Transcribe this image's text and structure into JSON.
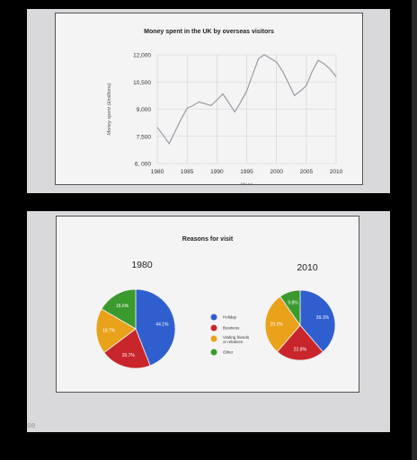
{
  "chart_data": [
    {
      "type": "line",
      "title": "Money spent in the UK by overseas visitors",
      "xlabel": "Year",
      "ylabel": "Money spent (£millions)",
      "x_ticks": [
        "1980",
        "1985",
        "1990",
        "1995",
        "2000",
        "2005",
        "2010"
      ],
      "y_ticks": [
        "12,000",
        "10,500",
        "9,000",
        "7,500",
        "6, 000"
      ],
      "xlim": [
        1980,
        2010
      ],
      "ylim": [
        6000,
        12000
      ],
      "grid": true,
      "series": [
        {
          "x": [
            1980,
            1981,
            1982,
            1983,
            1984,
            1985,
            1986,
            1987,
            1988,
            1989,
            1990,
            1991,
            1992,
            1993,
            1994,
            1995,
            1996,
            1997,
            1998,
            1999,
            2000,
            2001,
            2002,
            2003,
            2004,
            2005,
            2006,
            2007,
            2008,
            2009,
            2010
          ],
          "y": [
            8000,
            7550,
            7100,
            7780,
            8450,
            9050,
            9200,
            9400,
            9300,
            9200,
            9500,
            9850,
            9350,
            8850,
            9400,
            10000,
            10900,
            11800,
            12000,
            11800,
            11600,
            11100,
            10450,
            9750,
            10000,
            10300,
            11100,
            11700,
            11500,
            11200,
            10800
          ]
        }
      ]
    },
    {
      "type": "pie",
      "title": "Reasons for visit",
      "subtitle": "1980",
      "legend_position": "center",
      "slices": [
        {
          "label": "Holiday",
          "value": 44.1,
          "display": "44.1%",
          "color": "#2f5fcf"
        },
        {
          "label": "Business",
          "value": 20.7,
          "display": "20.7%",
          "color": "#c8262c"
        },
        {
          "label": "Visiting friends or relatives",
          "value": 18.7,
          "display": "18.7%",
          "color": "#e9a21a"
        },
        {
          "label": "Other",
          "value": 16.6,
          "display": "16.6%",
          "color": "#3a9a2e"
        }
      ]
    },
    {
      "type": "pie",
      "title": "Reasons for visit",
      "subtitle": "2010",
      "legend_position": "center",
      "slices": [
        {
          "label": "Holiday",
          "value": 39.1,
          "display": "39.1%",
          "color": "#2f5fcf"
        },
        {
          "label": "Business",
          "value": 22.8,
          "display": "22.8%",
          "color": "#c8262c"
        },
        {
          "label": "Visiting friends or relatives",
          "value": 29.2,
          "display": "29.2%",
          "color": "#e9a21a"
        },
        {
          "label": "Other",
          "value": 9.8,
          "display": "9.8%",
          "color": "#3a9a2e"
        }
      ]
    }
  ],
  "legend": [
    {
      "label": "Holiday",
      "color": "#2f5fcf"
    },
    {
      "label": "Business",
      "color": "#c8262c"
    },
    {
      "label": "Visiting friends or relatives",
      "color": "#e9a21a"
    },
    {
      "label": "Other",
      "color": "#3a9a2e"
    }
  ],
  "edge_text": "se"
}
